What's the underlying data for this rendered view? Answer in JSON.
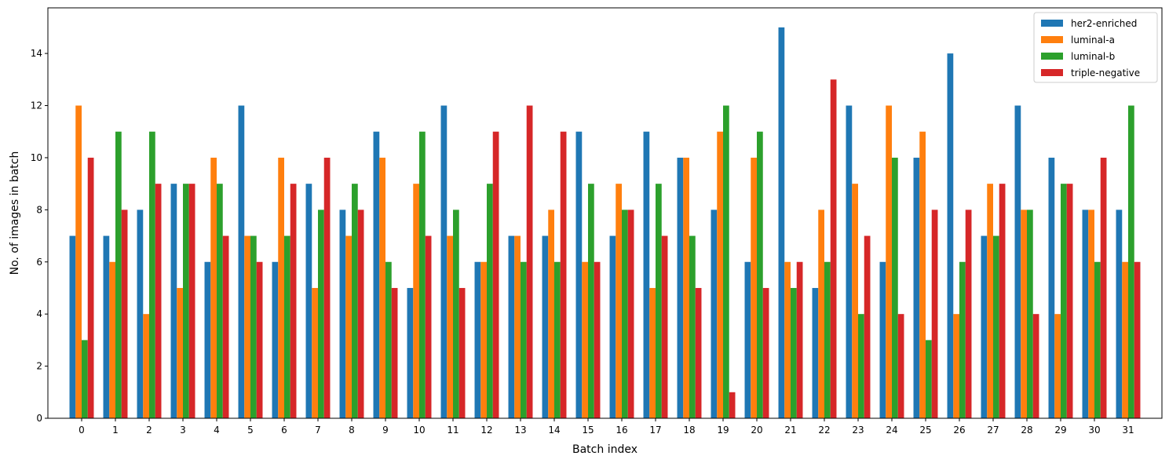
{
  "chart_data": {
    "type": "bar",
    "xlabel": "Batch index",
    "ylabel": "No. of images in batch",
    "ylim": [
      0,
      15.75
    ],
    "yticks": [
      0,
      2,
      4,
      6,
      8,
      10,
      12,
      14
    ],
    "categories": [
      "0",
      "1",
      "2",
      "3",
      "4",
      "5",
      "6",
      "7",
      "8",
      "9",
      "10",
      "11",
      "12",
      "13",
      "14",
      "15",
      "16",
      "17",
      "18",
      "19",
      "20",
      "21",
      "22",
      "23",
      "24",
      "25",
      "26",
      "27",
      "28",
      "29",
      "30",
      "31"
    ],
    "legend_position": "top-right",
    "series": [
      {
        "name": "her2-enriched",
        "color": "#1f77b4",
        "values": [
          7,
          7,
          8,
          9,
          6,
          12,
          6,
          9,
          8,
          11,
          5,
          12,
          6,
          7,
          7,
          11,
          7,
          11,
          10,
          8,
          6,
          15,
          5,
          12,
          6,
          10,
          14,
          7,
          12,
          10,
          8,
          8
        ]
      },
      {
        "name": "luminal-a",
        "color": "#ff7f0e",
        "values": [
          12,
          6,
          4,
          5,
          10,
          7,
          10,
          5,
          7,
          10,
          9,
          7,
          6,
          7,
          8,
          6,
          9,
          5,
          10,
          11,
          10,
          6,
          8,
          9,
          12,
          11,
          4,
          9,
          8,
          4,
          8,
          6
        ]
      },
      {
        "name": "luminal-b",
        "color": "#2ca02c",
        "values": [
          3,
          11,
          11,
          9,
          9,
          7,
          7,
          8,
          9,
          6,
          11,
          8,
          9,
          6,
          6,
          9,
          8,
          9,
          7,
          12,
          11,
          5,
          6,
          4,
          10,
          3,
          6,
          7,
          8,
          9,
          6,
          12
        ]
      },
      {
        "name": "triple-negative",
        "color": "#d62728",
        "values": [
          10,
          8,
          9,
          9,
          7,
          6,
          9,
          10,
          8,
          5,
          7,
          5,
          11,
          12,
          11,
          6,
          8,
          7,
          5,
          1,
          5,
          6,
          13,
          7,
          4,
          8,
          8,
          9,
          4,
          9,
          10,
          6
        ]
      }
    ]
  }
}
